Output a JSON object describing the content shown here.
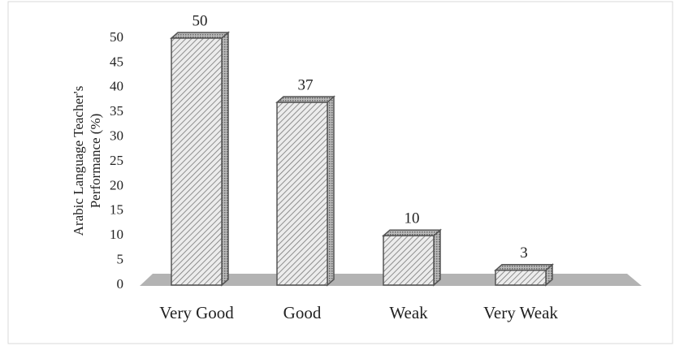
{
  "chart_data": {
    "type": "bar",
    "y_label": [
      "Arabic Language Teacher's",
      "Performance (%)"
    ],
    "categories": [
      "Very Good",
      "Good",
      "Weak",
      "Very Weak"
    ],
    "values": [
      50,
      37,
      10,
      3
    ],
    "color": "#d9d9d9",
    "ylim": [
      0,
      50
    ],
    "yticks": [
      0,
      5,
      10,
      15,
      20,
      25,
      30,
      35,
      40,
      45,
      50
    ]
  }
}
